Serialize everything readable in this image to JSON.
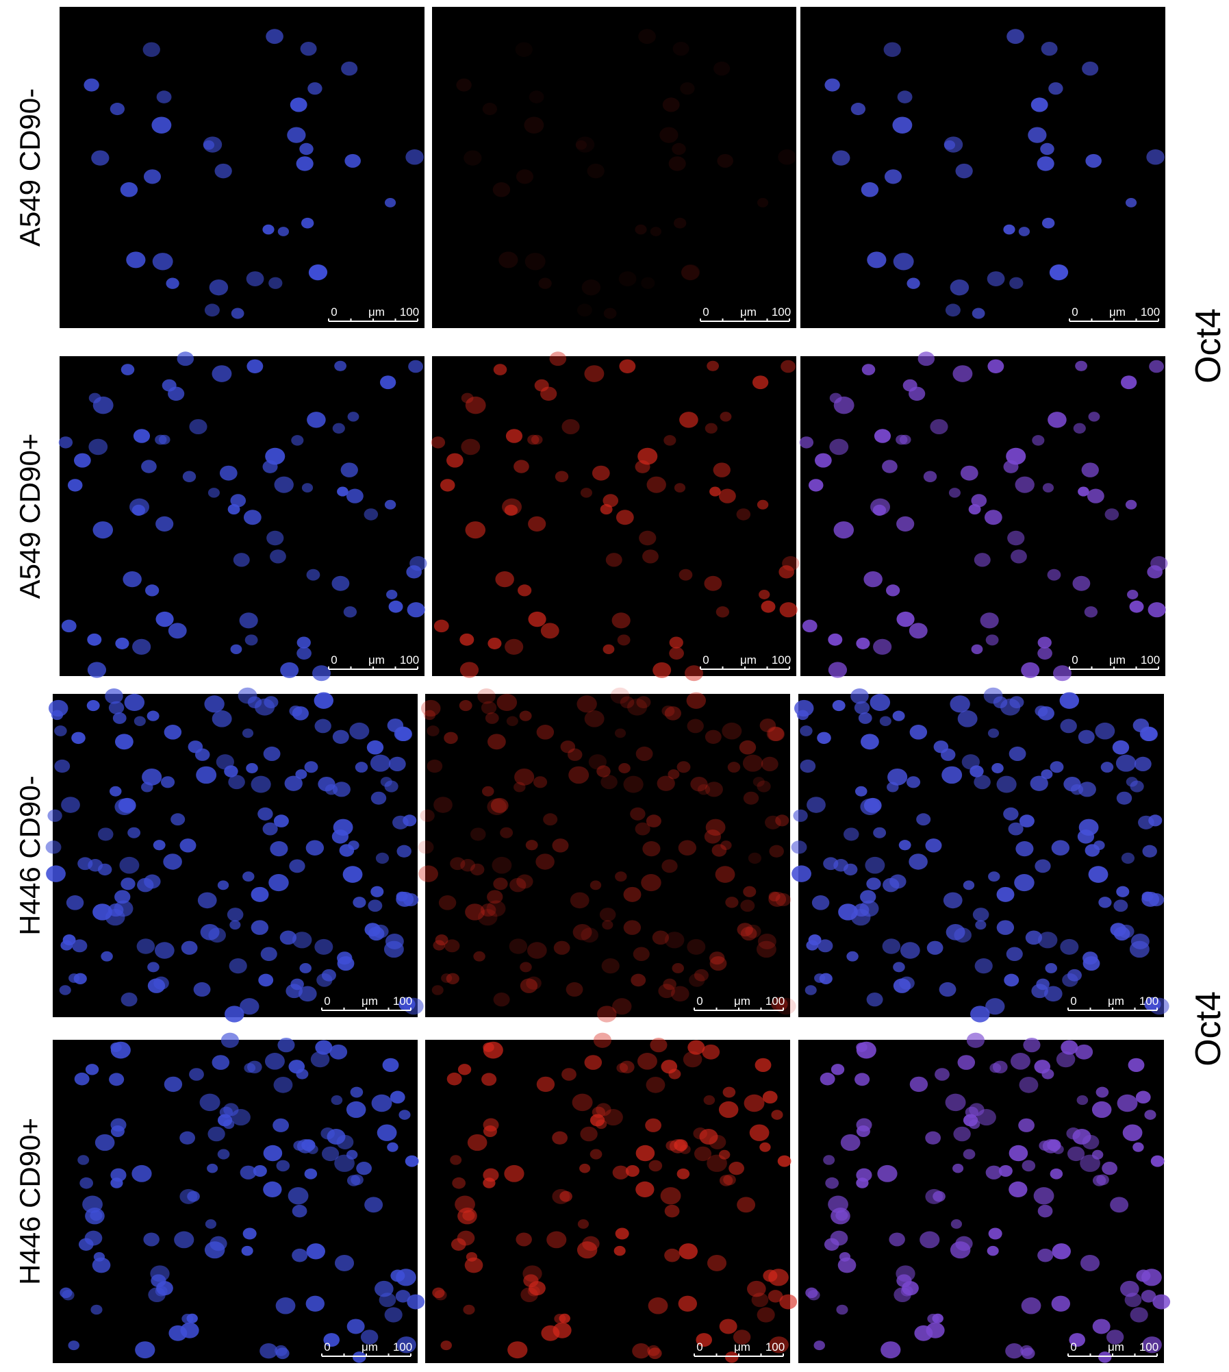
{
  "rows": [
    {
      "label": "A549 CD90-"
    },
    {
      "label": "A549 CD90+"
    },
    {
      "label": "H446 CD90-"
    },
    {
      "label": "H446 CD90+"
    }
  ],
  "side_labels": [
    "Oct4",
    "Oct4"
  ],
  "scale_bar": {
    "start": "0",
    "unit": "μm",
    "end": "100"
  }
}
